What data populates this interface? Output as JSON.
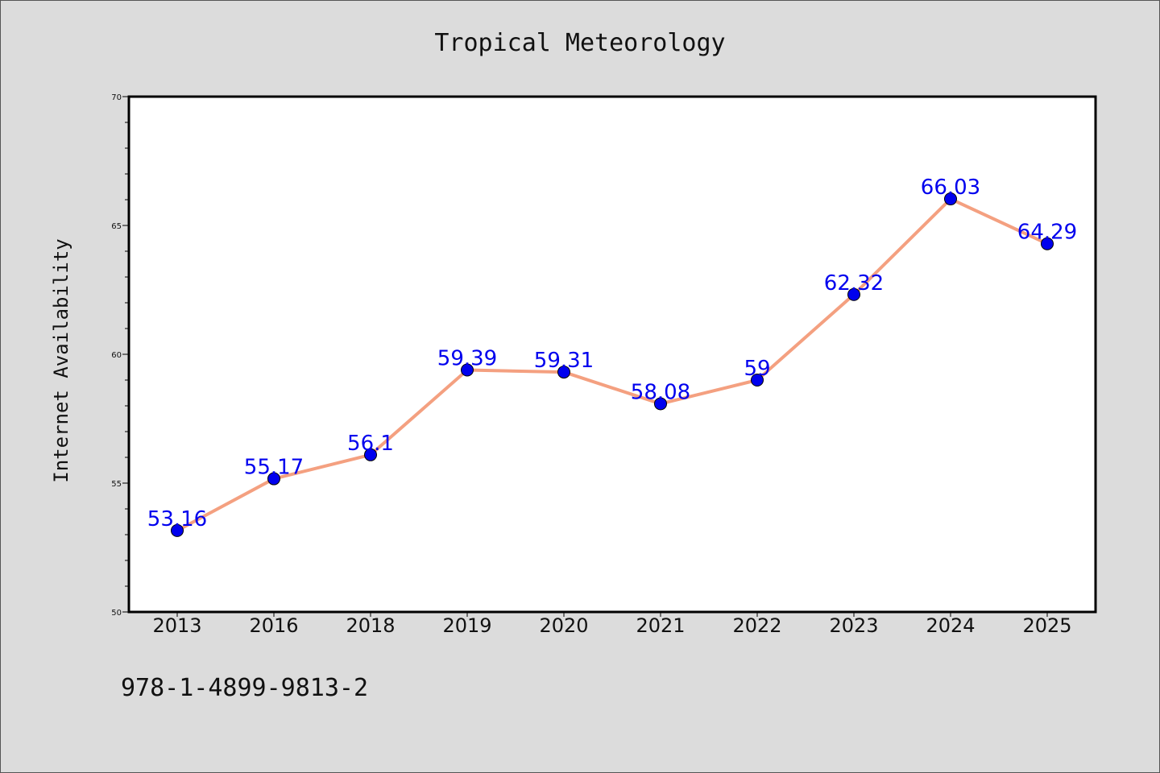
{
  "chart_data": {
    "type": "line",
    "title": "Tropical Meteorology",
    "xlabel": "",
    "ylabel": "Internet Availability",
    "categories": [
      "2013",
      "2016",
      "2018",
      "2019",
      "2020",
      "2021",
      "2022",
      "2023",
      "2024",
      "2025"
    ],
    "series": [
      {
        "values": [
          53.16,
          55.17,
          56.1,
          59.39,
          59.31,
          58.08,
          59,
          62.32,
          66.03,
          64.29
        ],
        "labels": [
          "53.16",
          "55.17",
          "56.1",
          "59.39",
          "59.31",
          "58.08",
          "59",
          "62.32",
          "66.03",
          "64.29"
        ],
        "line_color": "#f4a080",
        "marker_color": "#0000ee"
      }
    ],
    "ylim": [
      50,
      70
    ],
    "yticks": [
      "50",
      "55",
      "60",
      "65",
      "70"
    ],
    "grid": false,
    "legend": "none"
  },
  "footnote": "978-1-4899-9813-2",
  "colors": {
    "background": "#dcdcdc",
    "plot_background": "#ffffff",
    "label_color": "#0000ee"
  }
}
